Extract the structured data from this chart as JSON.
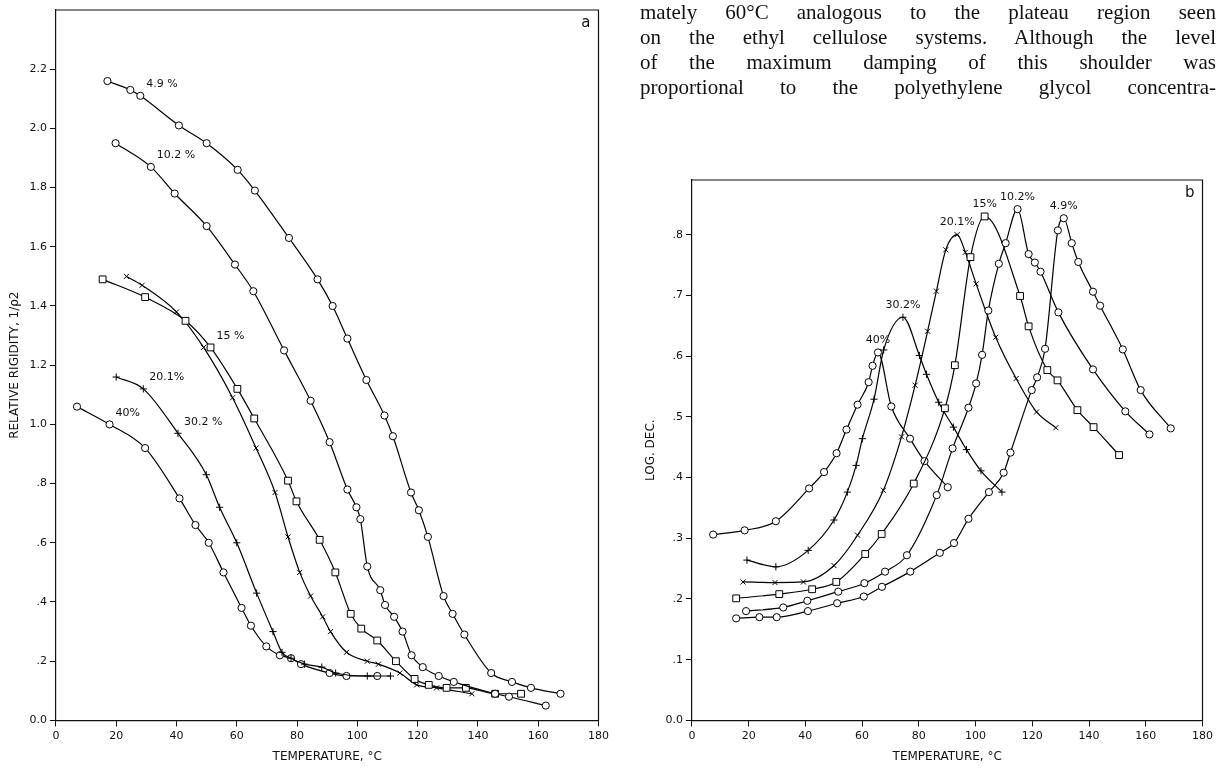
{
  "chart_data": [
    {
      "type": "line",
      "xlabel": "TEMPERATURE, °C",
      "ylabel": "RELATIVE RIGIDITY, 1/ρ2",
      "annotations": [
        "a",
        {
          "text": "4.9 %",
          "x": 28,
          "y": 2.11
        },
        {
          "text": "10.2 %",
          "x": 31.5,
          "y": 1.87
        },
        {
          "text": "15 %",
          "x": 51.3,
          "y": 1.26
        },
        {
          "text": "20.1%",
          "x": 29,
          "y": 1.12
        },
        {
          "text": "30.2 %",
          "x": 40.5,
          "y": 0.97
        },
        {
          "text": "40%",
          "x": 17.8,
          "y": 1.0
        }
      ],
      "xlim": [
        0,
        180
      ],
      "ylim": [
        0,
        2.4
      ],
      "xticks": [
        0,
        20,
        40,
        60,
        80,
        100,
        120,
        140,
        160,
        180
      ],
      "yticks": [
        {
          "value": 0,
          "label": "0.0"
        },
        {
          "value": 0.2,
          "label": ".2"
        },
        {
          "value": 0.4,
          "label": ".4"
        },
        {
          "value": 0.6,
          "label": ".6"
        },
        {
          "value": 0.8,
          "label": ".8"
        },
        {
          "value": 1.0,
          "label": "1.0"
        },
        {
          "value": 1.2,
          "label": "1.2"
        },
        {
          "value": 1.4,
          "label": "1.4"
        },
        {
          "value": 1.6,
          "label": "1.6"
        },
        {
          "value": 1.8,
          "label": "1.8"
        },
        {
          "value": 2.0,
          "label": "2.0"
        },
        {
          "value": 2.2,
          "label": "2.2"
        }
      ],
      "series": [
        {
          "color": "#000000",
          "marker": "circle",
          "x": [
            17.1,
            24.7,
            28,
            40.8,
            50,
            60.3,
            66,
            77.3,
            86.8,
            91.8,
            96.7,
            103,
            109,
            111.8,
            117.8,
            120.4,
            123.4,
            128.6,
            131.6,
            135.5,
            144.4,
            151.3,
            157.6,
            167.4
          ],
          "values": [
            2.16,
            2.13,
            2.11,
            2.01,
            1.95,
            1.86,
            1.79,
            1.63,
            1.49,
            1.4,
            1.29,
            1.15,
            1.03,
            0.96,
            0.77,
            0.71,
            0.62,
            0.42,
            0.36,
            0.29,
            0.16,
            0.13,
            0.11,
            0.09
          ]
        },
        {
          "color": "#000000",
          "marker": "circle",
          "x": [
            19.8,
            31.5,
            39.4,
            50,
            59.4,
            65.5,
            75.7,
            84.5,
            90.8,
            96.7,
            99.7,
            101,
            103.3,
            107.6,
            109.2,
            112.2,
            115,
            118,
            121.7,
            127,
            132,
            145.7,
            150.3,
            162.5
          ],
          "values": [
            1.95,
            1.87,
            1.78,
            1.67,
            1.54,
            1.45,
            1.25,
            1.08,
            0.94,
            0.78,
            0.72,
            0.68,
            0.52,
            0.44,
            0.39,
            0.35,
            0.3,
            0.22,
            0.18,
            0.15,
            0.13,
            0.09,
            0.08,
            0.05
          ]
        },
        {
          "color": "#000000",
          "marker": "square",
          "x": [
            15.5,
            29.6,
            43,
            51.3,
            60.2,
            65.8,
            77,
            79.8,
            87.5,
            92.7,
            97.8,
            101.3,
            106.6,
            112.8,
            119,
            123.7,
            129.6,
            136,
            145.7,
            154.3
          ],
          "values": [
            1.49,
            1.43,
            1.35,
            1.26,
            1.12,
            1.02,
            0.81,
            0.74,
            0.61,
            0.5,
            0.36,
            0.31,
            0.27,
            0.2,
            0.14,
            0.12,
            0.11,
            0.11,
            0.09,
            0.09
          ]
        },
        {
          "color": "#000000",
          "marker": "x",
          "x": [
            23.4,
            28.6,
            40,
            49,
            58.6,
            66.4,
            72.7,
            77,
            80.9,
            84.5,
            88.5,
            91.1,
            96.4,
            103.3,
            107,
            114.1,
            119.7,
            126.3,
            138
          ],
          "values": [
            1.5,
            1.47,
            1.38,
            1.26,
            1.09,
            0.92,
            0.77,
            0.62,
            0.5,
            0.42,
            0.35,
            0.3,
            0.23,
            0.2,
            0.19,
            0.16,
            0.12,
            0.11,
            0.09
          ]
        },
        {
          "color": "#000000",
          "marker": "cross",
          "x": [
            20,
            29,
            40.5,
            49.9,
            54.3,
            60,
            66.6,
            72,
            75,
            78,
            82.5,
            88.2,
            92.8,
            103.3,
            111
          ],
          "values": [
            1.16,
            1.12,
            0.97,
            0.83,
            0.72,
            0.6,
            0.43,
            0.3,
            0.23,
            0.21,
            0.19,
            0.18,
            0.16,
            0.15,
            0.15
          ]
        },
        {
          "color": "#000000",
          "marker": "circle",
          "x": [
            7,
            17.8,
            29.6,
            41,
            46.3,
            50.7,
            55.6,
            61.6,
            64.7,
            69.8,
            74.3,
            78,
            81.3,
            90.8,
            96.4,
            106.6
          ],
          "values": [
            1.06,
            1.0,
            0.92,
            0.75,
            0.66,
            0.6,
            0.5,
            0.38,
            0.32,
            0.25,
            0.22,
            0.21,
            0.19,
            0.16,
            0.15,
            0.15
          ]
        }
      ]
    },
    {
      "type": "line",
      "xlabel": "TEMPERATURE, °C",
      "ylabel": "LOG. DEC.",
      "annotations": [
        "b",
        {
          "text": "4.9%",
          "x": 131.1,
          "y": 0.827
        },
        {
          "text": "10.2%",
          "x": 114.8,
          "y": 0.842
        },
        {
          "text": "15%",
          "x": 103.2,
          "y": 0.83
        },
        {
          "text": "20.1%",
          "x": 93.5,
          "y": 0.8
        },
        {
          "text": "30.2%",
          "x": 74.4,
          "y": 0.664
        },
        {
          "text": "40%",
          "x": 65.6,
          "y": 0.606
        }
      ],
      "xlim": [
        0,
        180
      ],
      "ylim": [
        0,
        0.89
      ],
      "xticks": [
        0,
        20,
        40,
        60,
        80,
        100,
        120,
        140,
        160,
        180
      ],
      "yticks": [
        {
          "value": 0,
          "label": "0.0"
        },
        {
          "value": 0.1,
          "label": ".1"
        },
        {
          "value": 0.2,
          "label": ".2"
        },
        {
          "value": 0.3,
          "label": ".3"
        },
        {
          "value": 0.4,
          "label": ".4"
        },
        {
          "value": 0.5,
          "label": ".5"
        },
        {
          "value": 0.6,
          "label": ".6"
        },
        {
          "value": 0.7,
          "label": ".7"
        },
        {
          "value": 0.8,
          "label": ".8"
        }
      ],
      "series": [
        {
          "color": "#000000",
          "marker": "circle",
          "x": [
            15.6,
            23.8,
            29.9,
            40.9,
            51.2,
            60.6,
            67,
            77,
            87.4,
            92.4,
            97.5,
            104.7,
            109.9,
            112.3,
            119.8,
            121.7,
            124.5,
            129,
            131.1,
            133.9,
            136.2,
            141.4,
            143.9,
            151.9,
            158.2,
            168.8
          ],
          "values": [
            0.168,
            0.17,
            0.17,
            0.18,
            0.193,
            0.204,
            0.22,
            0.245,
            0.276,
            0.292,
            0.332,
            0.376,
            0.408,
            0.441,
            0.544,
            0.565,
            0.612,
            0.807,
            0.827,
            0.786,
            0.755,
            0.706,
            0.683,
            0.611,
            0.544,
            0.481
          ]
        },
        {
          "color": "#000000",
          "marker": "circle",
          "x": [
            19.1,
            32.2,
            40.7,
            51.6,
            60.8,
            68.1,
            75.8,
            86.3,
            91.9,
            97.5,
            100.2,
            102.3,
            104.5,
            108.2,
            110.6,
            114.8,
            118.7,
            120.9,
            122.9,
            129.2,
            141.4,
            152.8,
            161.3
          ],
          "values": [
            0.18,
            0.186,
            0.197,
            0.212,
            0.226,
            0.245,
            0.272,
            0.371,
            0.448,
            0.515,
            0.555,
            0.602,
            0.675,
            0.752,
            0.786,
            0.842,
            0.768,
            0.754,
            0.739,
            0.672,
            0.578,
            0.509,
            0.471
          ]
        },
        {
          "color": "#000000",
          "marker": "square",
          "x": [
            15.6,
            30.8,
            42.4,
            50.9,
            61.1,
            66.9,
            78.2,
            89.2,
            92.7,
            98.2,
            103.2,
            115.7,
            118.7,
            125.3,
            128.9,
            135.9,
            141.6,
            150.6
          ],
          "values": [
            0.201,
            0.208,
            0.216,
            0.228,
            0.274,
            0.307,
            0.39,
            0.514,
            0.585,
            0.763,
            0.83,
            0.699,
            0.649,
            0.577,
            0.56,
            0.511,
            0.483,
            0.437
          ]
        },
        {
          "color": "#000000",
          "marker": "x",
          "x": [
            18,
            29.3,
            39.3,
            50.1,
            58.4,
            67.5,
            73.9,
            78.7,
            83.1,
            86.2,
            89.5,
            93.5,
            96.4,
            100.2,
            107.1,
            114.3,
            121.5,
            128.3
          ],
          "values": [
            0.228,
            0.227,
            0.228,
            0.255,
            0.305,
            0.379,
            0.467,
            0.552,
            0.641,
            0.707,
            0.775,
            0.8,
            0.771,
            0.719,
            0.631,
            0.563,
            0.508,
            0.482
          ]
        },
        {
          "color": "#000000",
          "marker": "cross",
          "x": [
            19.4,
            29.6,
            41,
            50.1,
            54.8,
            57.9,
            60.1,
            64.2,
            67.6,
            74.4,
            80.2,
            82.7,
            87,
            92.2,
            96.8,
            101.9,
            109.3
          ],
          "values": [
            0.264,
            0.253,
            0.28,
            0.33,
            0.376,
            0.42,
            0.464,
            0.529,
            0.61,
            0.664,
            0.601,
            0.57,
            0.524,
            0.483,
            0.446,
            0.411,
            0.376
          ]
        },
        {
          "color": "#000000",
          "marker": "circle",
          "x": [
            7.5,
            18.6,
            29.6,
            41.3,
            46.6,
            51,
            54.5,
            58.4,
            62.3,
            63.7,
            65.6,
            70.3,
            76.9,
            82,
            90.2
          ],
          "values": [
            0.306,
            0.313,
            0.328,
            0.382,
            0.409,
            0.44,
            0.479,
            0.52,
            0.557,
            0.584,
            0.606,
            0.517,
            0.464,
            0.427,
            0.384
          ]
        }
      ]
    },
    {
      "type": "other",
      "annotations": [
        "mately 60°C analogous to the plateau region seen",
        "on the ethyl cellulose systems. Although the level",
        "of the maximum damping of this shoulder was",
        "proportional to the polyethylene glycol concentra-"
      ]
    }
  ]
}
